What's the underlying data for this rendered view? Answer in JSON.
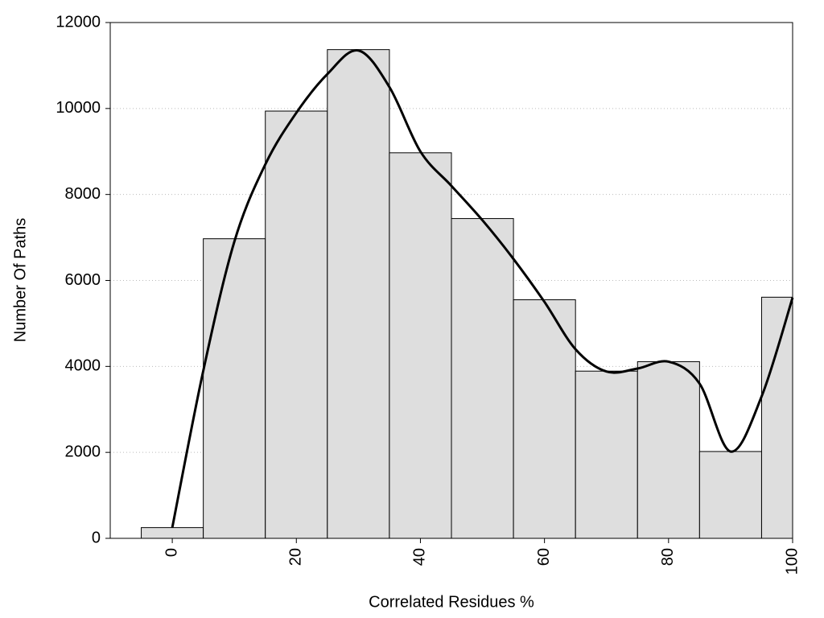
{
  "chart_data": {
    "type": "histogram",
    "x_label": "Correlated Residues %",
    "y_label": "Number Of Paths",
    "bins": [
      -5,
      5,
      15,
      25,
      35,
      45,
      55,
      65,
      75,
      85,
      95,
      100
    ],
    "counts": [
      250,
      6970,
      9940,
      11370,
      8970,
      7440,
      5550,
      3890,
      4110,
      2020,
      5610
    ],
    "color": "#dedede",
    "curve": {
      "color": "#000000",
      "x": [
        0,
        5,
        10,
        15,
        20,
        25,
        30,
        35,
        40,
        45,
        50,
        55,
        60,
        65,
        70,
        75,
        80,
        85,
        90,
        95,
        100
      ],
      "values": [
        250,
        3900,
        6900,
        8700,
        9900,
        10800,
        11350,
        10500,
        9000,
        8200,
        7400,
        6500,
        5500,
        4400,
        3880,
        3950,
        4110,
        3600,
        2020,
        3300,
        5600
      ]
    },
    "xlim": [
      -10,
      100
    ],
    "xticks": [
      0,
      20,
      40,
      60,
      80,
      100
    ],
    "ylim": [
      0,
      12000
    ],
    "yticks": [
      0,
      2000,
      4000,
      6000,
      8000,
      10000,
      12000
    ],
    "grid": true
  }
}
